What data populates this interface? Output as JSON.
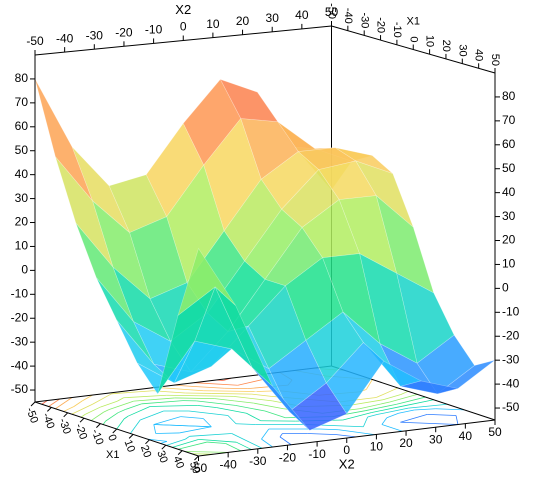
{
  "chart_data": {
    "type": "surface3d",
    "x1_label": "X1",
    "x2_label": "X2",
    "x1": [
      -50,
      -37.5,
      -25,
      -12.5,
      0,
      12.5,
      25,
      37.5,
      50
    ],
    "x2": [
      -50,
      -37.5,
      -25,
      -12.5,
      0,
      12.5,
      25,
      37.5,
      50
    ],
    "z": [
      [
        80,
        50,
        32,
        35,
        55,
        72,
        65,
        40,
        20
      ],
      [
        50,
        30,
        15,
        20,
        40,
        58,
        55,
        42,
        35
      ],
      [
        25,
        5,
        -10,
        -5,
        15,
        35,
        45,
        45,
        40
      ],
      [
        5,
        -15,
        -25,
        -15,
        5,
        25,
        40,
        42,
        35
      ],
      [
        -10,
        -30,
        -35,
        -20,
        0,
        20,
        30,
        30,
        15
      ],
      [
        -25,
        -35,
        -30,
        -15,
        0,
        10,
        10,
        0,
        -10
      ],
      [
        -35,
        -15,
        -20,
        -30,
        -20,
        -10,
        -25,
        -35,
        -25
      ],
      [
        0,
        10,
        -25,
        -45,
        -35,
        -20,
        -40,
        -45,
        -35
      ],
      [
        30,
        5,
        -30,
        -50,
        -45,
        -25,
        -35,
        -40,
        -30
      ]
    ],
    "x1lim": [
      -50,
      50
    ],
    "x2lim": [
      -50,
      50
    ],
    "zlim": [
      -55,
      90
    ],
    "x1ticks": [
      -50,
      -40,
      -30,
      -20,
      -10,
      0,
      10,
      20,
      30,
      40,
      50
    ],
    "x2ticks": [
      -50,
      -40,
      -30,
      -20,
      -10,
      0,
      10,
      20,
      30,
      40,
      50
    ],
    "zticks": [
      -50,
      -40,
      -30,
      -20,
      -10,
      0,
      10,
      20,
      30,
      40,
      50,
      60,
      70,
      80
    ],
    "colormap": [
      "#3a3aff",
      "#20c8ff",
      "#10e090",
      "#a8f060",
      "#f8d860",
      "#ff9050",
      "#f04040"
    ],
    "contours": true
  }
}
